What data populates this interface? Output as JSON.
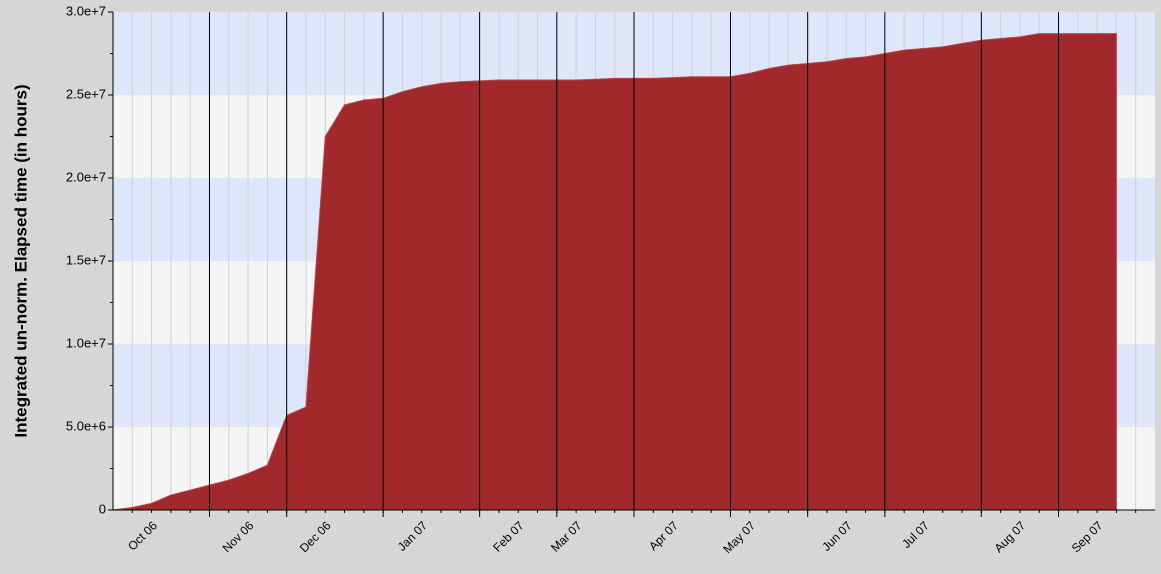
{
  "chart_data": {
    "type": "area",
    "ylabel": "Integrated un-norm. Elapsed time (in hours)",
    "categories": [
      null,
      null,
      "Oct 06",
      null,
      null,
      null,
      null,
      "Nov 06",
      null,
      null,
      null,
      "Dec 06",
      null,
      null,
      null,
      null,
      "Jan 07",
      null,
      null,
      null,
      null,
      "Feb 07",
      null,
      null,
      "Mar 07",
      null,
      null,
      null,
      null,
      "Apr 07",
      null,
      null,
      null,
      "May 07",
      null,
      null,
      null,
      null,
      "Jun 07",
      null,
      null,
      null,
      "Jul 07",
      null,
      null,
      null,
      null,
      "Aug 07",
      null,
      null,
      null,
      "Sep 07",
      null,
      null
    ],
    "series": [
      {
        "name": "Elapsed time",
        "color": "#a1292b",
        "values": [
          0,
          150000,
          400000,
          900000,
          1200000,
          1500000,
          1800000,
          2200000,
          2700000,
          5700000,
          6200000,
          22500000,
          24400000,
          24700000,
          24800000,
          25200000,
          25500000,
          25700000,
          25800000,
          25850000,
          25900000,
          25900000,
          25900000,
          25900000,
          25900000,
          25950000,
          26000000,
          26000000,
          26000000,
          26050000,
          26100000,
          26100000,
          26100000,
          26300000,
          26600000,
          26800000,
          26900000,
          27000000,
          27200000,
          27300000,
          27500000,
          27700000,
          27800000,
          27900000,
          28100000,
          28300000,
          28400000,
          28500000,
          28700000,
          28700000,
          28700000,
          28700000,
          28700000,
          null
        ]
      }
    ],
    "ylim": [
      0,
      30000000
    ],
    "yticks": [
      0,
      {
        "value": 5000000,
        "label": "5.0e+6"
      },
      {
        "value": 10000000,
        "label": "1.0e+7"
      },
      {
        "value": 15000000,
        "label": "1.5e+7"
      },
      {
        "value": 20000000,
        "label": "2.0e+7"
      },
      {
        "value": 25000000,
        "label": "2.5e+7"
      },
      {
        "value": 30000000,
        "label": "3.0e+7"
      }
    ],
    "grid": true
  }
}
